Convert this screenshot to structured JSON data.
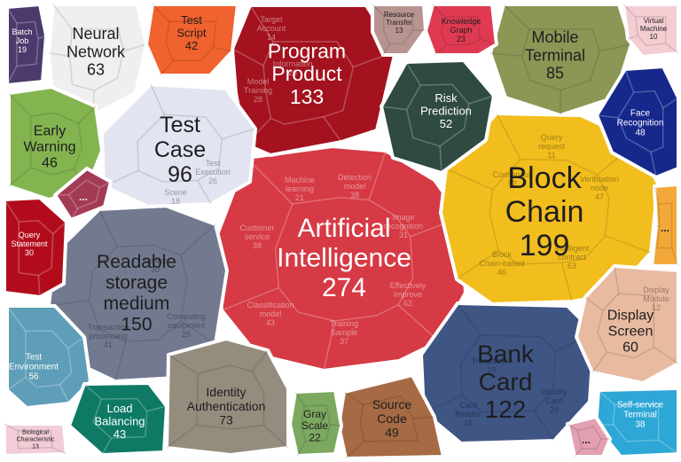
{
  "chart_data": {
    "type": "voronoi-treemap",
    "title": "",
    "cells": [
      {
        "name": "Artificial Intelligence",
        "lines": [
          "Artificial",
          "Intelligence"
        ],
        "value": 274,
        "color": "#d63a45",
        "dark": false,
        "children": [
          {
            "name": "Machine learning",
            "value": 21
          },
          {
            "name": "Detection model",
            "value": 38
          },
          {
            "name": "Image recognition",
            "value": 31
          },
          {
            "name": "Customer service",
            "value": 38
          },
          {
            "name": "Effectively improve",
            "value": 62
          },
          {
            "name": "Classification model",
            "value": 43
          },
          {
            "name": "Training Sample",
            "value": 37
          }
        ]
      },
      {
        "name": "Block Chain",
        "lines": [
          "Block",
          "Chain"
        ],
        "value": 199,
        "color": "#f2be1e",
        "dark": true,
        "children": [
          {
            "name": "Query request",
            "value": 11
          },
          {
            "name": "Consensus",
            "value": 52
          },
          {
            "name": "Verification node",
            "value": 47
          },
          {
            "name": "Intelligent contract",
            "value": 63
          },
          {
            "name": "Block Chain-based",
            "value": 46
          }
        ]
      },
      {
        "name": "Readable storage medium",
        "lines": [
          "Readable",
          "storage",
          "medium"
        ],
        "value": 150,
        "color": "#737a90",
        "dark": true,
        "children": [
          {
            "name": "Server",
            "value": 30
          },
          {
            "name": "Transaction processing",
            "value": 41
          },
          {
            "name": "Computing equipment",
            "value": 25
          }
        ]
      },
      {
        "name": "Program Product",
        "lines": [
          "Program",
          "Product"
        ],
        "value": 133,
        "color": "#a3121e",
        "dark": false,
        "children": [
          {
            "name": "Target Account",
            "value": 14
          },
          {
            "name": "Information",
            "value": 26
          },
          {
            "name": "Model Training",
            "value": 28
          }
        ]
      },
      {
        "name": "Bank Card",
        "lines": [
          "Bank",
          "Card"
        ],
        "value": 122,
        "color": "#3f5584",
        "dark": true,
        "children": [
          {
            "name": "Transaction",
            "value": 19
          },
          {
            "name": "Card Reader",
            "value": 16
          },
          {
            "name": "Identity Card",
            "value": 29
          }
        ]
      },
      {
        "name": "Test Case",
        "lines": [
          "Test",
          "Case"
        ],
        "value": 96,
        "color": "#e2e4f2",
        "dark": true,
        "children": [
          {
            "name": "Test Execution",
            "value": 26
          },
          {
            "name": "Scene",
            "value": 18
          }
        ]
      },
      {
        "name": "Mobile Terminal",
        "lines": [
          "Mobile",
          "Terminal"
        ],
        "value": 85,
        "color": "#8c9655",
        "dark": true,
        "children": []
      },
      {
        "name": "Identity Authentication",
        "lines": [
          "Identity",
          "Authentication"
        ],
        "value": 73,
        "color": "#948c7d",
        "dark": true,
        "children": []
      },
      {
        "name": "Neural Network",
        "lines": [
          "Neural",
          "Network"
        ],
        "value": 63,
        "color": "#f0efef",
        "dark": true,
        "children": []
      },
      {
        "name": "Display Screen",
        "lines": [
          "Display",
          "Screen"
        ],
        "value": 60,
        "color": "#e8baa0",
        "dark": true,
        "children": [
          {
            "name": "Display Module",
            "value": 12
          }
        ]
      },
      {
        "name": "Test Environment",
        "lines": [
          "Test",
          "Environment"
        ],
        "value": 56,
        "color": "#5f9eb8",
        "dark": false,
        "children": []
      },
      {
        "name": "Risk Prediction",
        "lines": [
          "Risk",
          "Prediction"
        ],
        "value": 52,
        "color": "#2f4a40",
        "dark": false,
        "children": []
      },
      {
        "name": "Source Code",
        "lines": [
          "Source",
          "Code"
        ],
        "value": 49,
        "color": "#a66a44",
        "dark": true,
        "children": []
      },
      {
        "name": "Face Recognition",
        "lines": [
          "Face",
          "Recognition"
        ],
        "value": 48,
        "color": "#16288c",
        "dark": false,
        "children": []
      },
      {
        "name": "Early Warning",
        "lines": [
          "Early",
          "Warning"
        ],
        "value": 46,
        "color": "#84b450",
        "dark": true,
        "children": []
      },
      {
        "name": "Load Balancing",
        "lines": [
          "Load",
          "Balancing"
        ],
        "value": 43,
        "color": "#0e7a66",
        "dark": false,
        "children": []
      },
      {
        "name": "Test Script",
        "lines": [
          "Test",
          "Script"
        ],
        "value": 42,
        "color": "#f0622e",
        "dark": true,
        "children": []
      },
      {
        "name": "Self-service Terminal",
        "lines": [
          "Self-service",
          "Terminal"
        ],
        "value": 38,
        "color": "#2ca7d6",
        "dark": false,
        "children": []
      },
      {
        "name": "Query Statement",
        "lines": [
          "Query",
          "Statement"
        ],
        "value": 30,
        "color": "#b20c1c",
        "dark": false,
        "children": []
      },
      {
        "name": "Knowledge Graph",
        "lines": [
          "Knowledge",
          "Graph"
        ],
        "value": 23,
        "color": "#e03a52",
        "dark": true,
        "children": []
      },
      {
        "name": "Gray Scale",
        "lines": [
          "Gray",
          "Scale"
        ],
        "value": 22,
        "color": "#7ca860",
        "dark": true,
        "children": []
      },
      {
        "name": "Batch Job",
        "lines": [
          "Batch",
          "Job"
        ],
        "value": 19,
        "color": "#4c3a6c",
        "dark": false,
        "children": []
      },
      {
        "name": "Resource Transfer",
        "lines": [
          "Resource",
          "Transfer"
        ],
        "value": 13,
        "color": "#b89490",
        "dark": true,
        "children": []
      },
      {
        "name": "Biological Characteristic",
        "lines": [
          "Biological",
          "Characteristic"
        ],
        "value": 13,
        "color": "#f2ccd6",
        "dark": true,
        "children": []
      },
      {
        "name": "Virtual Machine",
        "lines": [
          "Virtual",
          "Machine"
        ],
        "value": 10,
        "color": "#f4cdd2",
        "dark": true,
        "children": []
      },
      {
        "name": "Small cell A",
        "lines": [],
        "value": null,
        "color": "#a33a56",
        "dark": false,
        "children": []
      },
      {
        "name": "Small cell B",
        "lines": [],
        "value": null,
        "color": "#f2a93a",
        "dark": true,
        "children": []
      },
      {
        "name": "Small cell C",
        "lines": [],
        "value": null,
        "color": "#e3a0b0",
        "dark": true,
        "children": []
      }
    ],
    "more_label": "..."
  }
}
